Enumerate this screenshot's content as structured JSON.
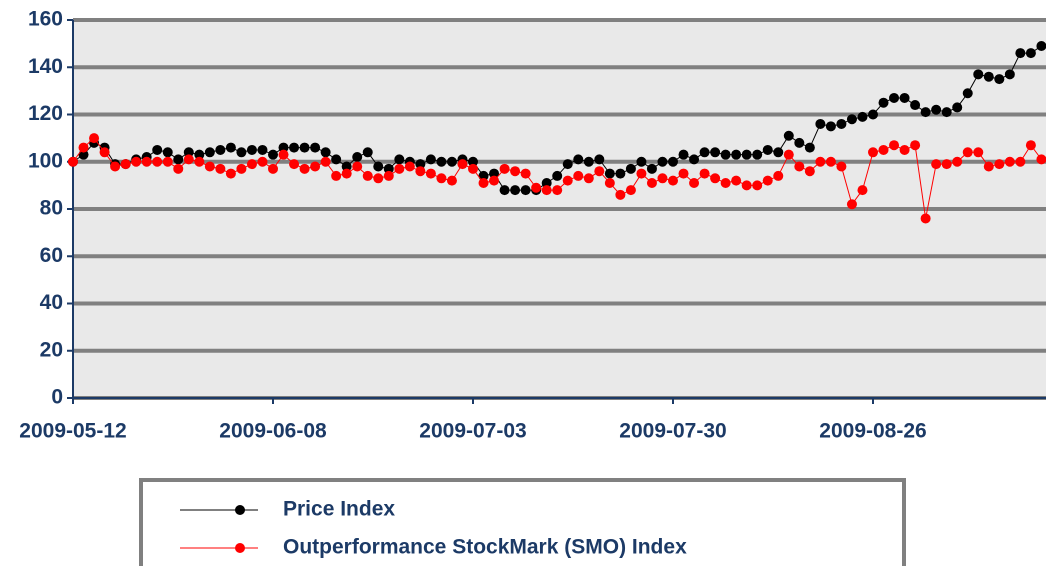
{
  "chart_data": {
    "type": "line",
    "categories": [
      "2009-05-12",
      null,
      null,
      null,
      null,
      null,
      null,
      null,
      null,
      null,
      null,
      null,
      null,
      null,
      null,
      null,
      null,
      null,
      null,
      "2009-06-08",
      null,
      null,
      null,
      null,
      null,
      null,
      null,
      null,
      null,
      null,
      null,
      null,
      null,
      null,
      null,
      null,
      null,
      null,
      "2009-07-03",
      null,
      null,
      null,
      null,
      null,
      null,
      null,
      null,
      null,
      null,
      null,
      null,
      null,
      null,
      null,
      null,
      null,
      null,
      "2009-07-30",
      null,
      null,
      null,
      null,
      null,
      null,
      null,
      null,
      null,
      null,
      null,
      null,
      null,
      null,
      null,
      null,
      null,
      null,
      "2009-08-26",
      null,
      null,
      null,
      null,
      null,
      null,
      null,
      null,
      null,
      null,
      null,
      null,
      null,
      null,
      null,
      null
    ],
    "series": [
      {
        "name": "Price Index",
        "color": "#000000",
        "values": [
          100,
          103,
          108,
          106,
          99,
          99,
          101,
          102,
          105,
          104,
          101,
          104,
          103,
          104,
          105,
          106,
          104,
          105,
          105,
          103,
          106,
          106,
          106,
          106,
          104,
          101,
          98,
          102,
          104,
          98,
          97,
          101,
          100,
          99,
          101,
          100,
          100,
          101,
          100,
          94,
          95,
          88,
          88,
          88,
          88,
          91,
          94,
          99,
          101,
          100,
          101,
          95,
          95,
          97,
          100,
          97,
          100,
          100,
          103,
          101,
          104,
          104,
          103,
          103,
          103,
          103,
          105,
          104,
          111,
          108,
          106,
          116,
          115,
          116,
          118,
          119,
          120,
          125,
          127,
          127,
          124,
          121,
          122,
          121,
          123,
          129,
          137,
          136,
          135,
          137,
          146,
          146,
          149
        ]
      },
      {
        "name": "Outperformance StockMark (SMO) Index",
        "color": "#ff0000",
        "values": [
          100,
          106,
          110,
          104,
          98,
          99,
          100,
          100,
          100,
          100,
          97,
          101,
          100,
          98,
          97,
          95,
          97,
          99,
          100,
          97,
          103,
          99,
          97,
          98,
          100,
          94,
          95,
          98,
          94,
          93,
          94,
          97,
          98,
          96,
          95,
          93,
          92,
          99,
          97,
          91,
          92,
          97,
          96,
          95,
          89,
          88,
          88,
          92,
          94,
          93,
          96,
          91,
          86,
          88,
          95,
          91,
          93,
          92,
          95,
          91,
          95,
          93,
          91,
          92,
          90,
          90,
          92,
          94,
          103,
          98,
          96,
          100,
          100,
          98,
          82,
          88,
          104,
          105,
          107,
          105,
          107,
          76,
          99,
          99,
          100,
          104,
          104,
          98,
          99,
          100,
          100,
          107,
          101
        ]
      }
    ],
    "ylim": [
      0,
      160
    ],
    "yticks": [
      0,
      20,
      40,
      60,
      80,
      100,
      120,
      140,
      160
    ],
    "grid": true
  }
}
